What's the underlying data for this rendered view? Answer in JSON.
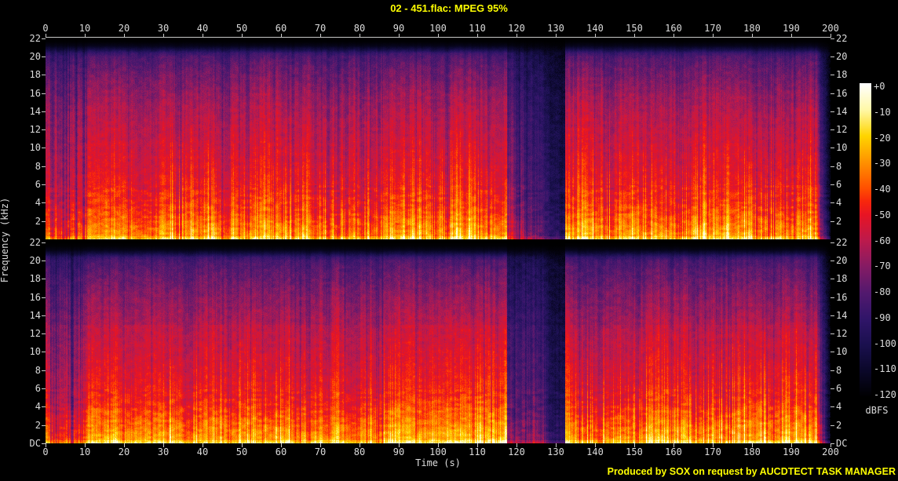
{
  "title": "02 - 451.flac: MPEG 95%",
  "footer": "Produced by SOX on request by AUCDTECT TASK MANAGER",
  "axes": {
    "x_label": "Time (s)",
    "y_label": "Frequency (kHz)",
    "x_tick_labels": [
      "0",
      "10",
      "20",
      "30",
      "40",
      "50",
      "60",
      "70",
      "80",
      "90",
      "100",
      "110",
      "120",
      "130",
      "140",
      "150",
      "160",
      "170",
      "180",
      "190",
      "200"
    ],
    "y_tick_labels_top_panel": [
      "22",
      "20",
      "18",
      "16",
      "14",
      "12",
      "10",
      "8",
      "6",
      "4",
      "2"
    ],
    "y_tick_labels_bottom_panel": [
      "22",
      "20",
      "18",
      "16",
      "14",
      "12",
      "10",
      "8",
      "6",
      "4",
      "2",
      "DC"
    ]
  },
  "colorbar": {
    "label": "dBFS",
    "tick_labels": [
      "+0",
      "-10",
      "-20",
      "-30",
      "-40",
      "-50",
      "-60",
      "-70",
      "-80",
      "-90",
      "-100",
      "-110",
      "-120"
    ]
  },
  "colors": {
    "background": "#000000",
    "title_text": "#ffff00",
    "footer_text": "#ffff00",
    "axis_text": "#dcdcdc",
    "axis_line": "#c8c8c8"
  },
  "chart_data": {
    "type": "heatmap",
    "subtype": "audio-spectrogram",
    "title": "02 - 451.flac: MPEG 95%",
    "xlabel": "Time (s)",
    "ylabel": "Frequency (kHz)",
    "x_range_s": [
      0,
      200
    ],
    "y_range_khz": [
      0,
      22.05
    ],
    "x_ticks_s": [
      0,
      10,
      20,
      30,
      40,
      50,
      60,
      70,
      80,
      90,
      100,
      110,
      120,
      130,
      140,
      150,
      160,
      170,
      180,
      190,
      200
    ],
    "y_ticks_khz": [
      22,
      20,
      18,
      16,
      14,
      12,
      10,
      8,
      6,
      4,
      2,
      0
    ],
    "channels": 2,
    "channel_order": [
      "left-top-panel",
      "right-bottom-panel"
    ],
    "colorbar": {
      "label": "dBFS",
      "min_db": -120,
      "max_db": 0,
      "tick_db": [
        0,
        -10,
        -20,
        -30,
        -40,
        -50,
        -60,
        -70,
        -80,
        -90,
        -100,
        -110,
        -120
      ]
    },
    "mpeg_cutoff_khz": 20.5,
    "palette_stops": [
      [
        0.0,
        [
          0,
          0,
          0
        ]
      ],
      [
        0.083,
        [
          10,
          7,
          40
        ]
      ],
      [
        0.167,
        [
          26,
          16,
          78
        ]
      ],
      [
        0.25,
        [
          48,
          21,
          105
        ]
      ],
      [
        0.333,
        [
          82,
          25,
          110
        ]
      ],
      [
        0.417,
        [
          133,
          27,
          100
        ]
      ],
      [
        0.5,
        [
          188,
          26,
          76
        ]
      ],
      [
        0.583,
        [
          232,
          20,
          35
        ]
      ],
      [
        0.625,
        [
          248,
          39,
          12
        ]
      ],
      [
        0.667,
        [
          255,
          80,
          0
        ]
      ],
      [
        0.75,
        [
          255,
          146,
          0
        ]
      ],
      [
        0.833,
        [
          255,
          212,
          0
        ]
      ],
      [
        0.917,
        [
          255,
          248,
          168
        ]
      ],
      [
        1.0,
        [
          255,
          255,
          255
        ]
      ]
    ],
    "spectral_profile_khz_level": [
      [
        0,
        0.88
      ],
      [
        0.4,
        0.83
      ],
      [
        1,
        0.8
      ],
      [
        2,
        0.76
      ],
      [
        3,
        0.715
      ],
      [
        4,
        0.685
      ],
      [
        5,
        0.665
      ],
      [
        6,
        0.645
      ],
      [
        8,
        0.615
      ],
      [
        10,
        0.59
      ],
      [
        12,
        0.565
      ],
      [
        14,
        0.535
      ],
      [
        16,
        0.49
      ],
      [
        17.5,
        0.445
      ],
      [
        19,
        0.4
      ],
      [
        20,
        0.355
      ],
      [
        20.4,
        0.3
      ],
      [
        20.8,
        0.16
      ],
      [
        21.2,
        0.06
      ],
      [
        21.6,
        0.015
      ],
      [
        22.05,
        0.0
      ]
    ],
    "time_segments": [
      {
        "t0": 0,
        "t1": 1.2,
        "level": 0.92,
        "stripe": 0.2,
        "transients": 0.3
      },
      {
        "t0": 1.2,
        "t1": 10.5,
        "level": 0.88,
        "stripe": 0.55,
        "transients": 0.25
      },
      {
        "t0": 10.5,
        "t1": 31.5,
        "level": 0.97,
        "stripe": 0.22,
        "transients": 0.3
      },
      {
        "t0": 31.5,
        "t1": 44,
        "level": 1.0,
        "stripe": 0.26,
        "transients": 0.85
      },
      {
        "t0": 44,
        "t1": 75,
        "level": 0.98,
        "stripe": 0.28,
        "transients": 0.6
      },
      {
        "t0": 75,
        "t1": 86,
        "level": 0.96,
        "stripe": 0.32,
        "transients": 0.5
      },
      {
        "t0": 86,
        "t1": 117.5,
        "level": 0.99,
        "stripe": 0.25,
        "transients": 0.6
      },
      {
        "t0": 117.5,
        "t1": 127.3,
        "level": 0.72,
        "stripe": 0.5,
        "transients": 0.25,
        "fade_to": 0.5
      },
      {
        "t0": 127.3,
        "t1": 132.3,
        "level": 0.42,
        "stripe": 0.35,
        "transients": 0.1,
        "fade_to": 0.24
      },
      {
        "t0": 132.3,
        "t1": 196.5,
        "level": 1.0,
        "stripe": 0.26,
        "transients": 0.75
      },
      {
        "t0": 196.5,
        "t1": 200,
        "level": 0.9,
        "stripe": 0.22,
        "transients": 0.3,
        "fade_to": 0.04
      }
    ]
  }
}
